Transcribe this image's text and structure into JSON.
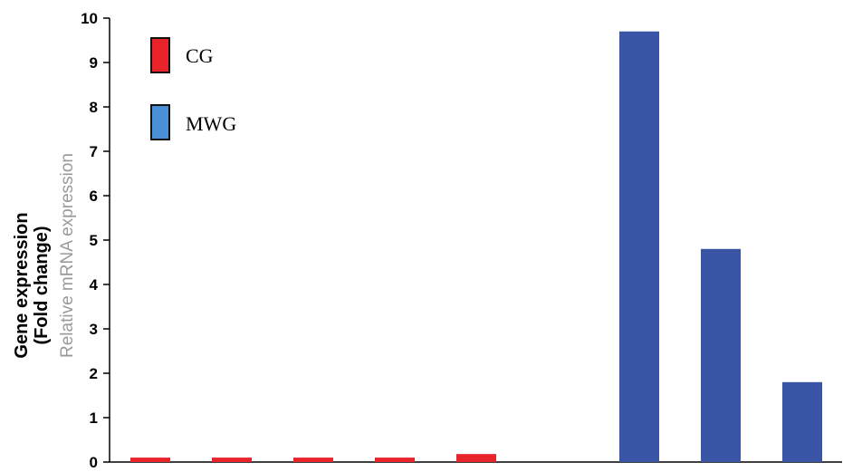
{
  "chart_data": {
    "type": "bar",
    "title": "",
    "ylabel_lines": [
      "Gene expression",
      "(Fold change)"
    ],
    "ylabel_underlay": "Relative mRNA expression",
    "xlabel": "",
    "ylim": [
      0,
      10
    ],
    "yticks": [
      "0",
      "1",
      "2",
      "3",
      "4",
      "5",
      "6",
      "7",
      "8",
      "9",
      "10"
    ],
    "categories": [
      "",
      "",
      "",
      "",
      "",
      "",
      "",
      "",
      ""
    ],
    "series": [
      {
        "name": "CG",
        "color": "#e8232a",
        "values": [
          0.1,
          0.1,
          0.1,
          0.1,
          0.18,
          null,
          null,
          null,
          null
        ]
      },
      {
        "name": "MWG",
        "color": "#3a55a6",
        "values": [
          null,
          null,
          null,
          null,
          null,
          null,
          9.7,
          4.8,
          1.8
        ]
      }
    ],
    "legend": {
      "position": "top-left",
      "entries": [
        {
          "label": "CG",
          "swatch_color": "#e8232a"
        },
        {
          "label": "MWG",
          "swatch_color": "#4a90d9"
        }
      ]
    },
    "grid": false
  }
}
